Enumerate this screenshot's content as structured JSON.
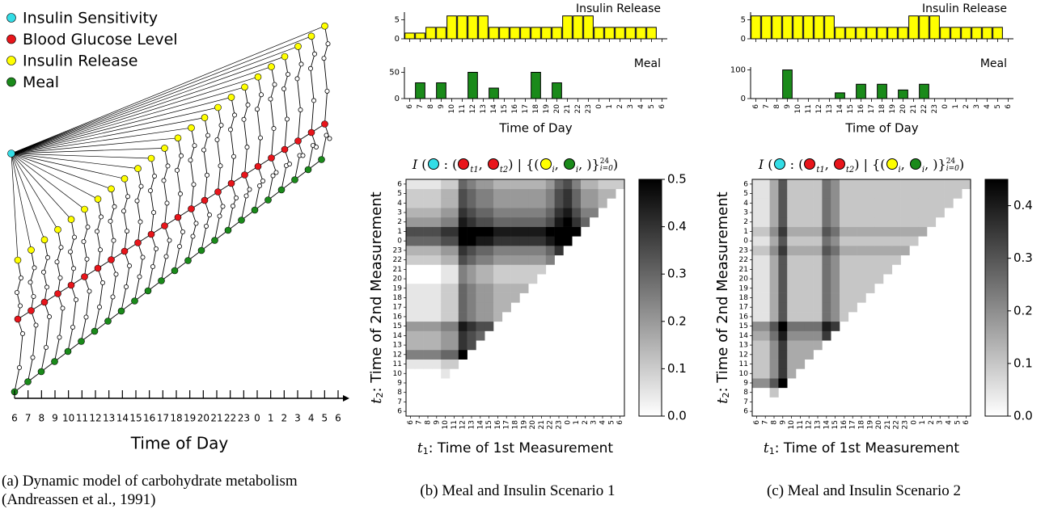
{
  "chart_data": [
    {
      "type": "network",
      "legend": [
        {
          "name": "Insulin Sensitivity",
          "color": "#33dde6"
        },
        {
          "name": "Blood Glucose Level",
          "color": "#e8151b"
        },
        {
          "name": "Insulin Release",
          "color": "#ffff00"
        },
        {
          "name": "Meal",
          "color": "#1a8a1a"
        }
      ],
      "categories": [
        "6",
        "7",
        "8",
        "9",
        "10",
        "11",
        "12",
        "13",
        "14",
        "15",
        "16",
        "17",
        "18",
        "19",
        "20",
        "21",
        "22",
        "23",
        "0",
        "1",
        "2",
        "3",
        "4",
        "5",
        "6"
      ],
      "x_label": "Time of Day"
    },
    {
      "type": "bar",
      "series": [
        {
          "name": "Insulin Release",
          "color": "#ffff00",
          "values": [
            1.5,
            1.5,
            3,
            3,
            6,
            6,
            6,
            6,
            3,
            3,
            3,
            3,
            3,
            3,
            3,
            6,
            6,
            6,
            3,
            3,
            3,
            3,
            3,
            3,
            null
          ]
        }
      ],
      "ylim": [
        0,
        7
      ],
      "yticks": [
        0,
        5
      ]
    },
    {
      "type": "bar",
      "series": [
        {
          "name": "Meal",
          "color": "#1a8a1a",
          "values": [
            0,
            30,
            0,
            30,
            0,
            0,
            50,
            0,
            20,
            0,
            0,
            0,
            50,
            0,
            30,
            0,
            0,
            0,
            0,
            0,
            0,
            0,
            0,
            0,
            0
          ]
        }
      ],
      "categories": [
        "6",
        "7",
        "8",
        "9",
        "10",
        "11",
        "12",
        "13",
        "14",
        "15",
        "16",
        "17",
        "18",
        "19",
        "20",
        "21",
        "22",
        "23",
        "0",
        "1",
        "2",
        "3",
        "4",
        "5",
        "6"
      ],
      "ylim": [
        0,
        60
      ],
      "yticks": [
        0,
        50
      ],
      "x_label": "Time of Day"
    },
    {
      "type": "heatmap",
      "title": [
        {
          "text": "I",
          "italic": true
        },
        {
          "text": " ("
        },
        {
          "color": "#33dde6"
        },
        {
          "text": " : ("
        },
        {
          "color": "#e8151b"
        },
        {
          "sub": "t1"
        },
        {
          "text": ", "
        },
        {
          "color": "#e8151b"
        },
        {
          "sub": "t2"
        },
        {
          "text": ") | {("
        },
        {
          "color": "#ffff00"
        },
        {
          "sub": "i"
        },
        {
          "text": ", "
        },
        {
          "color": "#1a8a1a"
        },
        {
          "sub": "i"
        },
        {
          "text": ", )}"
        },
        {
          "sup": "24",
          "sub": "i=0"
        },
        {
          "text": ")"
        }
      ],
      "xcategories": [
        "6",
        "7",
        "8",
        "9",
        "10",
        "11",
        "12",
        "13",
        "14",
        "15",
        "16",
        "17",
        "18",
        "19",
        "20",
        "21",
        "22",
        "23",
        "0",
        "1",
        "2",
        "3",
        "4",
        "5",
        "6"
      ],
      "ycategories": [
        "6",
        "7",
        "8",
        "9",
        "10",
        "11",
        "12",
        "13",
        "14",
        "15",
        "16",
        "17",
        "18",
        "19",
        "20",
        "21",
        "22",
        "23",
        "0",
        "1",
        "2",
        "3",
        "4",
        "5",
        "6"
      ],
      "x_label_var": "t",
      "x_label_sub": "1",
      "x_label": ": Time of 1st Measurement",
      "y_label_var": "t",
      "y_label_sub": "2",
      "y_label": ": Time of 2nd Measurement",
      "zlim": [
        0,
        0.5
      ],
      "zticks": [
        {
          "value": 0,
          "label": "0.0"
        },
        0.1,
        0.2,
        0.3,
        0.4,
        0.5
      ],
      "values": [
        [
          0
        ],
        [
          0,
          0
        ],
        [
          0,
          0,
          0
        ],
        [
          0,
          0,
          0,
          0
        ],
        [
          0,
          0,
          0,
          0,
          0.05
        ],
        [
          0.05,
          0.05,
          0.05,
          0.05,
          0.1,
          0.1
        ],
        [
          0.25,
          0.25,
          0.25,
          0.25,
          0.3,
          0.3,
          0.5
        ],
        [
          0.15,
          0.15,
          0.15,
          0.15,
          0.2,
          0.2,
          0.4,
          0.35
        ],
        [
          0.15,
          0.15,
          0.15,
          0.15,
          0.2,
          0.2,
          0.4,
          0.35,
          0.3
        ],
        [
          0.2,
          0.2,
          0.2,
          0.2,
          0.25,
          0.25,
          0.45,
          0.4,
          0.35,
          0.35
        ],
        [
          0.05,
          0.05,
          0.05,
          0.05,
          0.1,
          0.1,
          0.3,
          0.25,
          0.2,
          0.2,
          0.15
        ],
        [
          0.05,
          0.05,
          0.05,
          0.05,
          0.1,
          0.1,
          0.3,
          0.25,
          0.2,
          0.2,
          0.15,
          0.15
        ],
        [
          0.05,
          0.05,
          0.05,
          0.05,
          0.1,
          0.1,
          0.3,
          0.25,
          0.2,
          0.2,
          0.15,
          0.15,
          0.15
        ],
        [
          0.05,
          0.05,
          0.05,
          0.05,
          0.1,
          0.1,
          0.3,
          0.25,
          0.2,
          0.2,
          0.15,
          0.15,
          0.15,
          0.15
        ],
        [
          0,
          0,
          0,
          0,
          0.05,
          0.05,
          0.25,
          0.2,
          0.15,
          0.15,
          0.1,
          0.1,
          0.1,
          0.1,
          0.1
        ],
        [
          0,
          0,
          0,
          0,
          0.05,
          0.05,
          0.25,
          0.2,
          0.15,
          0.15,
          0.1,
          0.1,
          0.1,
          0.1,
          0.1,
          0.1
        ],
        [
          0.1,
          0.1,
          0.1,
          0.1,
          0.15,
          0.15,
          0.35,
          0.3,
          0.25,
          0.25,
          0.2,
          0.2,
          0.2,
          0.2,
          0.2,
          0.2,
          0.25
        ],
        [
          0.15,
          0.15,
          0.15,
          0.15,
          0.2,
          0.2,
          0.4,
          0.35,
          0.3,
          0.3,
          0.25,
          0.25,
          0.25,
          0.25,
          0.25,
          0.25,
          0.3,
          0.4
        ],
        [
          0.3,
          0.3,
          0.3,
          0.3,
          0.35,
          0.35,
          0.5,
          0.5,
          0.45,
          0.45,
          0.4,
          0.4,
          0.4,
          0.4,
          0.4,
          0.4,
          0.45,
          0.5,
          0.5
        ],
        [
          0.35,
          0.35,
          0.35,
          0.35,
          0.4,
          0.4,
          0.5,
          0.5,
          0.5,
          0.5,
          0.45,
          0.45,
          0.45,
          0.45,
          0.45,
          0.45,
          0.5,
          0.5,
          0.5,
          0.5
        ],
        [
          0.2,
          0.2,
          0.2,
          0.2,
          0.25,
          0.25,
          0.45,
          0.4,
          0.35,
          0.35,
          0.3,
          0.3,
          0.3,
          0.3,
          0.3,
          0.3,
          0.35,
          0.45,
          0.5,
          0.4,
          0.3
        ],
        [
          0.15,
          0.15,
          0.15,
          0.15,
          0.2,
          0.2,
          0.4,
          0.35,
          0.3,
          0.3,
          0.25,
          0.25,
          0.25,
          0.25,
          0.25,
          0.25,
          0.3,
          0.4,
          0.45,
          0.35,
          0.25,
          0.25
        ],
        [
          0.1,
          0.1,
          0.1,
          0.1,
          0.15,
          0.15,
          0.35,
          0.3,
          0.25,
          0.25,
          0.2,
          0.2,
          0.2,
          0.2,
          0.2,
          0.2,
          0.25,
          0.35,
          0.4,
          0.3,
          0.2,
          0.2,
          0.15
        ],
        [
          0.1,
          0.1,
          0.1,
          0.1,
          0.15,
          0.15,
          0.35,
          0.3,
          0.25,
          0.25,
          0.2,
          0.2,
          0.2,
          0.2,
          0.2,
          0.2,
          0.25,
          0.35,
          0.4,
          0.3,
          0.2,
          0.2,
          0.15,
          0.15
        ],
        [
          0.05,
          0.05,
          0.05,
          0.05,
          0.1,
          0.1,
          0.3,
          0.25,
          0.2,
          0.2,
          0.15,
          0.15,
          0.15,
          0.15,
          0.15,
          0.15,
          0.2,
          0.3,
          0.35,
          0.25,
          0.15,
          0.15,
          0.1,
          0.1,
          0.1
        ]
      ]
    },
    {
      "type": "bar",
      "series": [
        {
          "name": "Insulin Release",
          "color": "#ffff00",
          "values": [
            6,
            6,
            6,
            6,
            6,
            6,
            6,
            6,
            3,
            3,
            3,
            3,
            3,
            3,
            3,
            6,
            6,
            6,
            3,
            3,
            3,
            3,
            3,
            3,
            null
          ]
        }
      ],
      "ylim": [
        0,
        7
      ],
      "yticks": [
        0,
        5
      ]
    },
    {
      "type": "bar",
      "series": [
        {
          "name": "Meal",
          "color": "#1a8a1a",
          "values": [
            0,
            0,
            0,
            100,
            0,
            0,
            0,
            0,
            20,
            0,
            50,
            0,
            50,
            0,
            30,
            0,
            50,
            0,
            0,
            0,
            0,
            0,
            0,
            0,
            0
          ]
        }
      ],
      "categories": [
        "6",
        "7",
        "8",
        "9",
        "10",
        "11",
        "12",
        "13",
        "14",
        "15",
        "16",
        "17",
        "18",
        "19",
        "20",
        "21",
        "22",
        "23",
        "0",
        "1",
        "2",
        "3",
        "4",
        "5",
        "6"
      ],
      "ylim": [
        0,
        110
      ],
      "yticks": [
        0,
        100
      ],
      "x_label": "Time of Day"
    },
    {
      "type": "heatmap",
      "title": [
        {
          "text": "I",
          "italic": true
        },
        {
          "text": " ("
        },
        {
          "color": "#33dde6"
        },
        {
          "text": " : ("
        },
        {
          "color": "#e8151b"
        },
        {
          "sub": "t1"
        },
        {
          "text": ", "
        },
        {
          "color": "#e8151b"
        },
        {
          "sub": "t2"
        },
        {
          "text": ") | {("
        },
        {
          "color": "#ffff00"
        },
        {
          "sub": "i"
        },
        {
          "text": ", "
        },
        {
          "color": "#1a8a1a"
        },
        {
          "sub": "i"
        },
        {
          "text": ", )}"
        },
        {
          "sup": "24",
          "sub": "i=0"
        },
        {
          "text": ")"
        }
      ],
      "xcategories": [
        "6",
        "7",
        "8",
        "9",
        "10",
        "11",
        "12",
        "13",
        "14",
        "15",
        "16",
        "17",
        "18",
        "19",
        "20",
        "21",
        "22",
        "23",
        "0",
        "1",
        "2",
        "3",
        "4",
        "5",
        "6"
      ],
      "ycategories": [
        "6",
        "7",
        "8",
        "9",
        "10",
        "11",
        "12",
        "13",
        "14",
        "15",
        "16",
        "17",
        "18",
        "19",
        "20",
        "21",
        "22",
        "23",
        "0",
        "1",
        "2",
        "3",
        "4",
        "5",
        "6"
      ],
      "x_label_var": "t",
      "x_label_sub": "1",
      "x_label": ": Time of 1st Measurement",
      "y_label_var": "t",
      "y_label_sub": "2",
      "y_label": ": Time of 2nd Measurement",
      "zlim": [
        0,
        0.45
      ],
      "zticks": [
        {
          "value": 0,
          "label": "0.0"
        },
        0.1,
        0.2,
        0.3,
        0.4
      ],
      "values": [
        [
          0
        ],
        [
          0,
          0
        ],
        [
          0,
          0,
          0.1
        ],
        [
          0.2,
          0.2,
          0.3,
          0.45
        ],
        [
          0.1,
          0.1,
          0.2,
          0.35,
          0.15
        ],
        [
          0.1,
          0.1,
          0.2,
          0.35,
          0.15,
          0.15
        ],
        [
          0.1,
          0.1,
          0.2,
          0.35,
          0.15,
          0.15,
          0.15
        ],
        [
          0.1,
          0.1,
          0.2,
          0.35,
          0.15,
          0.15,
          0.15,
          0.15
        ],
        [
          0.15,
          0.15,
          0.25,
          0.4,
          0.2,
          0.2,
          0.2,
          0.2,
          0.35
        ],
        [
          0.2,
          0.2,
          0.3,
          0.45,
          0.25,
          0.25,
          0.25,
          0.25,
          0.4,
          0.35
        ],
        [
          0.05,
          0.05,
          0.15,
          0.3,
          0.1,
          0.1,
          0.1,
          0.1,
          0.25,
          0.2,
          0.1
        ],
        [
          0.05,
          0.05,
          0.15,
          0.3,
          0.1,
          0.1,
          0.1,
          0.1,
          0.25,
          0.2,
          0.1,
          0.1
        ],
        [
          0.05,
          0.05,
          0.15,
          0.3,
          0.1,
          0.1,
          0.1,
          0.1,
          0.25,
          0.2,
          0.1,
          0.1,
          0.1
        ],
        [
          0.05,
          0.05,
          0.15,
          0.3,
          0.1,
          0.1,
          0.1,
          0.1,
          0.25,
          0.2,
          0.1,
          0.1,
          0.1,
          0.1
        ],
        [
          0.05,
          0.05,
          0.15,
          0.3,
          0.1,
          0.1,
          0.1,
          0.1,
          0.25,
          0.2,
          0.1,
          0.1,
          0.1,
          0.1,
          0.1
        ],
        [
          0.05,
          0.05,
          0.15,
          0.3,
          0.1,
          0.1,
          0.1,
          0.1,
          0.25,
          0.2,
          0.1,
          0.1,
          0.1,
          0.1,
          0.1,
          0.1
        ],
        [
          0.05,
          0.05,
          0.15,
          0.3,
          0.1,
          0.1,
          0.1,
          0.1,
          0.25,
          0.2,
          0.1,
          0.1,
          0.1,
          0.1,
          0.1,
          0.1,
          0.1
        ],
        [
          0.1,
          0.1,
          0.2,
          0.35,
          0.15,
          0.15,
          0.15,
          0.15,
          0.3,
          0.25,
          0.15,
          0.15,
          0.15,
          0.15,
          0.15,
          0.15,
          0.15,
          0.15
        ],
        [
          0.05,
          0.05,
          0.15,
          0.3,
          0.1,
          0.1,
          0.1,
          0.1,
          0.25,
          0.2,
          0.1,
          0.1,
          0.1,
          0.1,
          0.1,
          0.1,
          0.1,
          0.1,
          0.1
        ],
        [
          0.1,
          0.1,
          0.2,
          0.35,
          0.15,
          0.15,
          0.15,
          0.15,
          0.3,
          0.25,
          0.15,
          0.15,
          0.15,
          0.15,
          0.15,
          0.15,
          0.15,
          0.15,
          0.15,
          0.15
        ],
        [
          0.05,
          0.05,
          0.15,
          0.3,
          0.1,
          0.1,
          0.1,
          0.1,
          0.25,
          0.2,
          0.1,
          0.1,
          0.1,
          0.1,
          0.1,
          0.1,
          0.1,
          0.1,
          0.1,
          0.1,
          0.1
        ],
        [
          0.05,
          0.05,
          0.15,
          0.3,
          0.1,
          0.1,
          0.1,
          0.1,
          0.25,
          0.2,
          0.1,
          0.1,
          0.1,
          0.1,
          0.1,
          0.1,
          0.1,
          0.1,
          0.1,
          0.1,
          0.1,
          0.1
        ],
        [
          0.05,
          0.05,
          0.15,
          0.3,
          0.1,
          0.1,
          0.1,
          0.1,
          0.25,
          0.2,
          0.1,
          0.1,
          0.1,
          0.1,
          0.1,
          0.1,
          0.1,
          0.1,
          0.1,
          0.1,
          0.1,
          0.1,
          0.1
        ],
        [
          0.05,
          0.05,
          0.15,
          0.3,
          0.1,
          0.1,
          0.1,
          0.1,
          0.25,
          0.2,
          0.1,
          0.1,
          0.1,
          0.1,
          0.1,
          0.1,
          0.1,
          0.1,
          0.1,
          0.1,
          0.1,
          0.1,
          0.1,
          0.1
        ],
        [
          0.05,
          0.05,
          0.15,
          0.3,
          0.1,
          0.1,
          0.1,
          0.1,
          0.25,
          0.2,
          0.1,
          0.1,
          0.1,
          0.1,
          0.1,
          0.1,
          0.1,
          0.1,
          0.1,
          0.1,
          0.1,
          0.1,
          0.1,
          0.1,
          0.1
        ]
      ]
    }
  ],
  "captions": [
    "(a) Dynamic model of carbohydrate metabolism (Andreassen et al., 1991)",
    "(b) Meal and Insulin Scenario 1",
    "(c) Meal and Insulin Scenario 2"
  ]
}
